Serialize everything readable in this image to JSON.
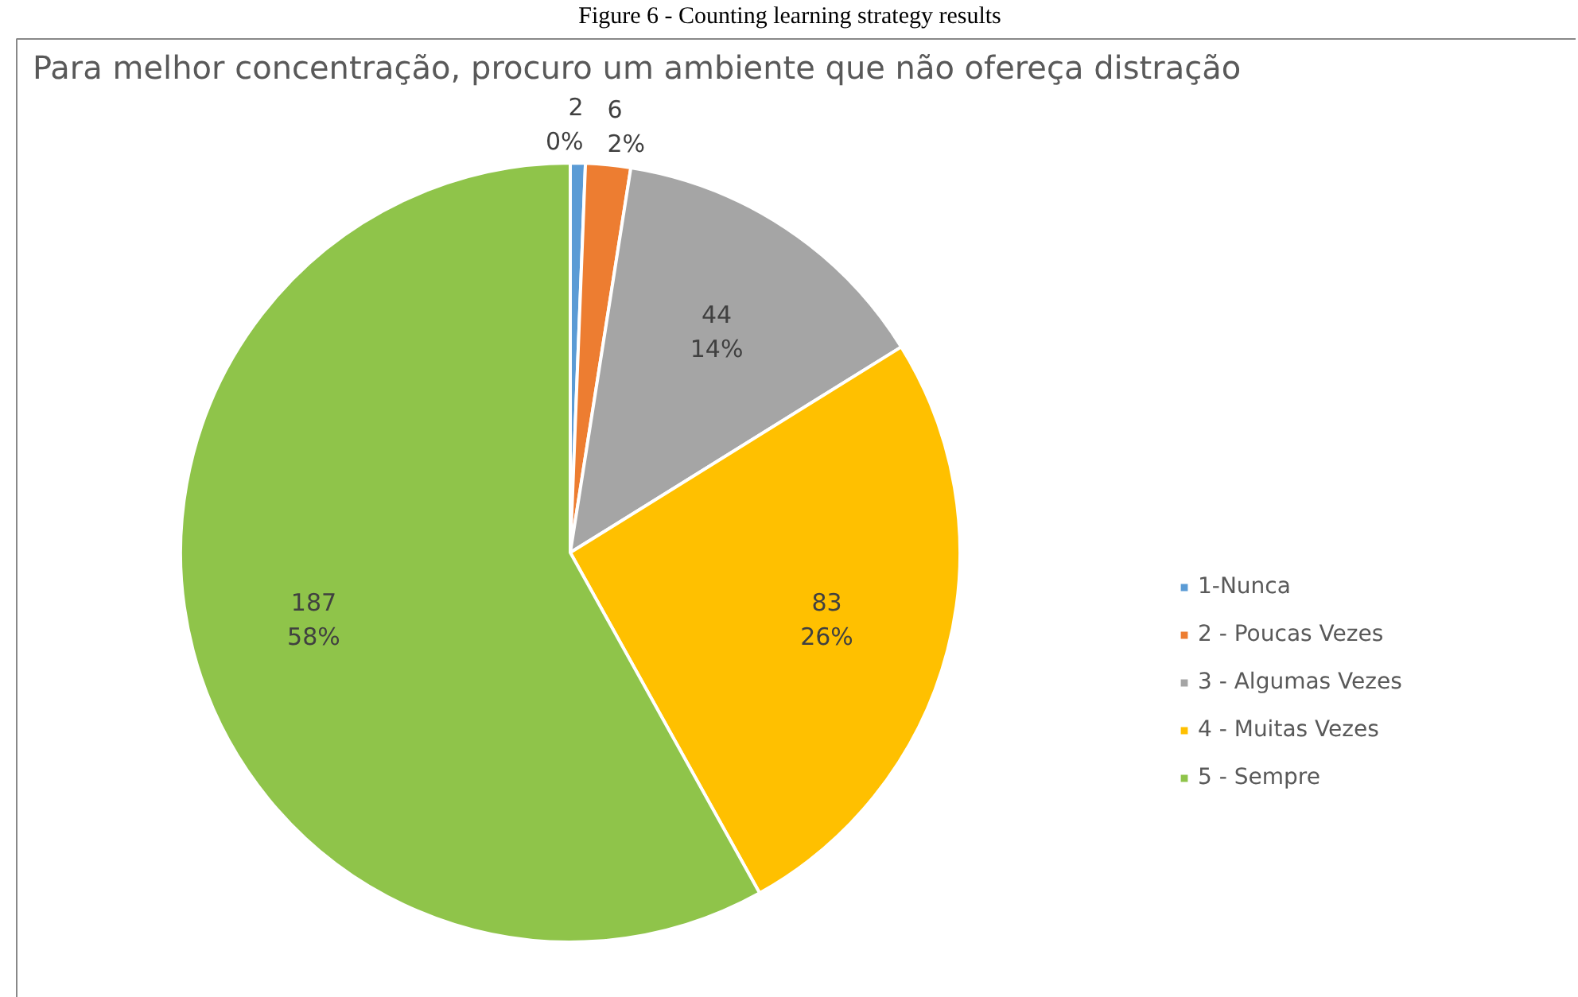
{
  "chart_data": {
    "type": "pie",
    "title": "Para melhor concentração, procuro um ambiente que não ofereça distração",
    "annotations": [
      "Figure 6 - Counting learning strategy results"
    ],
    "categories": [
      "1-Nunca",
      "2 - Poucas Vezes",
      "3 - Algumas Vezes",
      "4 - Muitas Vezes",
      "5 - Sempre"
    ],
    "values": [
      2,
      6,
      44,
      83,
      187
    ],
    "value_labels": [
      "2\n0%",
      "6\n2%",
      "44\n14%",
      "83\n26%",
      "187\n58%"
    ],
    "colors": [
      "#5b9bd5",
      "#ed7d31",
      "#a5a5a5",
      "#ffc000",
      "#8fc44a"
    ],
    "legend": "right"
  }
}
